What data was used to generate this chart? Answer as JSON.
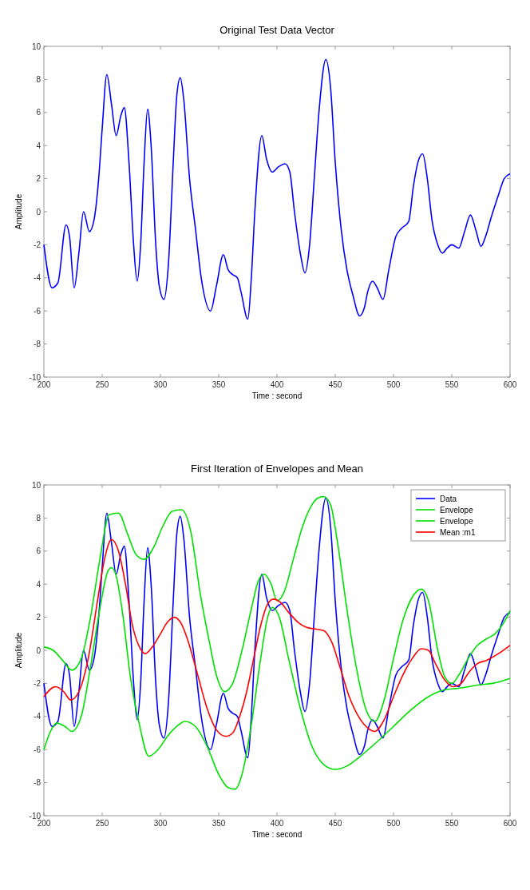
{
  "chart_data": [
    {
      "type": "line",
      "title": "Original Test Data Vector",
      "xlabel": "Time : second",
      "ylabel": "Amplitude",
      "xlim": [
        200,
        600
      ],
      "ylim": [
        -10,
        10
      ],
      "xticks": [
        200,
        250,
        300,
        350,
        400,
        450,
        500,
        550,
        600
      ],
      "yticks": [
        -10,
        -8,
        -6,
        -4,
        -2,
        0,
        2,
        4,
        6,
        8,
        10
      ],
      "grid": false,
      "legend": false,
      "series": [
        {
          "color": "#0000ff",
          "x": [
            200,
            207,
            212,
            219,
            222,
            226,
            230,
            234,
            239,
            243,
            247,
            250,
            254,
            258,
            262,
            266,
            269,
            273,
            277,
            280,
            283,
            286,
            289,
            292,
            296,
            299,
            303,
            307,
            311,
            314,
            317,
            320,
            325,
            330,
            335,
            343,
            348,
            354,
            358,
            362,
            366,
            369,
            375,
            378,
            381,
            387,
            391,
            396,
            401,
            407,
            411,
            415,
            420,
            424,
            428,
            432,
            436,
            442,
            446,
            450,
            455,
            460,
            465,
            471,
            475,
            478,
            482,
            486,
            491,
            496,
            502,
            507,
            513,
            517,
            521,
            525,
            529,
            533,
            538,
            542,
            546,
            550,
            556,
            561,
            566,
            571,
            575,
            579,
            584,
            590,
            595,
            600
          ],
          "values": [
            -2,
            -4.6,
            -4.3,
            -0.8,
            -1.5,
            -4.6,
            -2.5,
            0,
            -1.2,
            -0.5,
            2,
            5,
            8.3,
            6.5,
            4.6,
            5.8,
            6.3,
            3,
            -2,
            -4.2,
            -2,
            3,
            6.2,
            4,
            -2,
            -4.5,
            -5.3,
            -3,
            3,
            7,
            8.1,
            6.8,
            2,
            -1,
            -4,
            -6,
            -4.5,
            -2.6,
            -3.5,
            -3.8,
            -4,
            -4.8,
            -6.5,
            -4,
            0,
            4.6,
            3.2,
            2.4,
            2.7,
            2.9,
            2.4,
            0,
            -2.5,
            -3.7,
            -2,
            2,
            6,
            9.2,
            7.5,
            3,
            -1,
            -3.5,
            -5,
            -6.3,
            -5.8,
            -4.8,
            -4.2,
            -4.6,
            -5.3,
            -3.5,
            -1.5,
            -1,
            -0.6,
            1.5,
            3,
            3.5,
            2,
            -0.5,
            -2,
            -2.5,
            -2.2,
            -2,
            -2.2,
            -1.2,
            -0.2,
            -1.2,
            -2.1,
            -1.5,
            -0.3,
            1,
            2,
            2.3
          ]
        }
      ]
    },
    {
      "type": "line",
      "title": "First Iteration of Envelopes and Mean",
      "xlabel": "Time : second",
      "ylabel": "Amplitude",
      "xlim": [
        200,
        600
      ],
      "ylim": [
        -10,
        10
      ],
      "xticks": [
        200,
        250,
        300,
        350,
        400,
        450,
        500,
        550,
        600
      ],
      "yticks": [
        -10,
        -8,
        -6,
        -4,
        -2,
        0,
        2,
        4,
        6,
        8,
        10
      ],
      "grid": false,
      "legend": "top right",
      "series": [
        {
          "name": "Data",
          "color": "#0000ff",
          "x": [
            200,
            207,
            212,
            219,
            222,
            226,
            230,
            234,
            239,
            243,
            247,
            250,
            254,
            258,
            262,
            266,
            269,
            273,
            277,
            280,
            283,
            286,
            289,
            292,
            296,
            299,
            303,
            307,
            311,
            314,
            317,
            320,
            325,
            330,
            335,
            343,
            348,
            354,
            358,
            362,
            366,
            369,
            375,
            378,
            381,
            387,
            391,
            396,
            401,
            407,
            411,
            415,
            420,
            424,
            428,
            432,
            436,
            442,
            446,
            450,
            455,
            460,
            465,
            471,
            475,
            478,
            482,
            486,
            491,
            496,
            502,
            507,
            513,
            517,
            521,
            525,
            529,
            533,
            538,
            542,
            546,
            550,
            556,
            561,
            566,
            571,
            575,
            579,
            584,
            590,
            595,
            600
          ],
          "values": [
            -2,
            -4.6,
            -4.3,
            -0.8,
            -1.5,
            -4.6,
            -2.5,
            0,
            -1.2,
            -0.5,
            2,
            5,
            8.3,
            6.5,
            4.6,
            5.8,
            6.3,
            3,
            -2,
            -4.2,
            -2,
            3,
            6.2,
            4,
            -2,
            -4.5,
            -5.3,
            -3,
            3,
            7,
            8.1,
            6.8,
            2,
            -1,
            -4,
            -6,
            -4.5,
            -2.6,
            -3.5,
            -3.8,
            -4,
            -4.8,
            -6.5,
            -4,
            0,
            4.6,
            3.2,
            2.4,
            2.7,
            2.9,
            2.4,
            0,
            -2.5,
            -3.7,
            -2,
            2,
            6,
            9.2,
            7.5,
            3,
            -1,
            -3.5,
            -5,
            -6.3,
            -5.8,
            -4.8,
            -4.2,
            -4.6,
            -5.3,
            -3.5,
            -1.5,
            -1,
            -0.6,
            1.5,
            3,
            3.5,
            2,
            -0.5,
            -2,
            -2.5,
            -2.2,
            -2,
            -2.2,
            -1.2,
            -0.2,
            -1.2,
            -2.1,
            -1.5,
            -0.3,
            1,
            2,
            2.3
          ]
        },
        {
          "name": "Envelope",
          "color": "#00e000",
          "x": [
            200,
            208,
            216,
            224,
            232,
            240,
            248,
            256,
            264,
            272,
            279,
            286,
            294,
            302,
            310,
            318,
            326,
            334,
            342,
            348,
            355,
            362,
            370,
            378,
            384,
            389,
            395,
            400,
            406,
            414,
            422,
            430,
            435,
            440,
            446,
            452,
            460,
            468,
            476,
            484,
            492,
            500,
            508,
            516,
            524,
            530,
            538,
            544,
            550,
            556,
            564,
            572,
            580,
            587,
            594,
            600
          ],
          "values": [
            0.2,
            0,
            -0.6,
            -1.2,
            -0.5,
            2,
            5.5,
            8.2,
            8.3,
            7,
            5.8,
            5.5,
            6.2,
            7.5,
            8.4,
            8.5,
            7.2,
            3.5,
            0.5,
            -1.5,
            -2.5,
            -2,
            0,
            2.5,
            4.2,
            4.6,
            4,
            3,
            3.5,
            5.5,
            7.5,
            8.8,
            9.2,
            9.3,
            8.8,
            6.5,
            2.5,
            -1,
            -3.5,
            -4.3,
            -3,
            -0.5,
            1.8,
            3.2,
            3.7,
            3,
            0,
            -1.6,
            -2,
            -1.5,
            -0.5,
            0.3,
            0.7,
            1,
            1.6,
            2.4
          ]
        },
        {
          "name": "Envelope",
          "color": "#00e000",
          "x": [
            200,
            205,
            211,
            218,
            224,
            232,
            240,
            248,
            255,
            258,
            262,
            268,
            274,
            282,
            290,
            298,
            306,
            314,
            321,
            330,
            340,
            350,
            358,
            364,
            370,
            378,
            386,
            392,
            396,
            402,
            410,
            420,
            430,
            440,
            450,
            460,
            470,
            480,
            488,
            500,
            515,
            530,
            543,
            555,
            565,
            572,
            585,
            600
          ],
          "values": [
            -6,
            -5,
            -4.4,
            -4.6,
            -4.9,
            -4,
            -1,
            2.5,
            4.8,
            5,
            4.5,
            2,
            -1.5,
            -4.5,
            -6.4,
            -6,
            -5.2,
            -4.6,
            -4.3,
            -4.6,
            -5.8,
            -7.5,
            -8.3,
            -8.4,
            -7.5,
            -4.5,
            -0.5,
            2,
            2.6,
            2,
            -0.5,
            -3.5,
            -5.8,
            -6.9,
            -7.2,
            -7,
            -6.5,
            -5.9,
            -5.4,
            -4.6,
            -3.6,
            -2.8,
            -2.4,
            -2.3,
            -2.2,
            -2.1,
            -2,
            -1.7
          ]
        },
        {
          "name": "Mean :m1",
          "color": "#ff0000",
          "x": [
            200,
            210,
            217,
            223,
            230,
            238,
            246,
            252,
            258,
            264,
            270,
            276,
            282,
            287,
            293,
            300,
            306,
            312,
            318,
            324,
            332,
            340,
            348,
            356,
            362,
            368,
            374,
            380,
            386,
            392,
            397,
            403,
            410,
            418,
            425,
            432,
            440,
            447,
            454,
            462,
            470,
            478,
            484,
            492,
            500,
            508,
            516,
            524,
            530,
            536,
            544,
            551,
            558,
            565,
            572,
            580,
            590,
            600
          ],
          "values": [
            -2.8,
            -2.2,
            -2.5,
            -3,
            -2.5,
            -0.5,
            3,
            5.5,
            6.7,
            6,
            4,
            1.5,
            0.2,
            -0.2,
            0.2,
            1,
            1.7,
            2,
            1.6,
            0.5,
            -1.5,
            -3.5,
            -4.8,
            -5.2,
            -5,
            -4,
            -2.5,
            -0.5,
            1.5,
            2.8,
            3.1,
            2.9,
            2.3,
            1.7,
            1.4,
            1.3,
            1.2,
            0.5,
            -1,
            -2.8,
            -4,
            -4.7,
            -4.9,
            -4.2,
            -2.8,
            -1.5,
            -0.5,
            0.1,
            0,
            -0.8,
            -1.8,
            -2.2,
            -2,
            -1.3,
            -0.8,
            -0.6,
            -0.2,
            0.3
          ]
        }
      ]
    }
  ]
}
